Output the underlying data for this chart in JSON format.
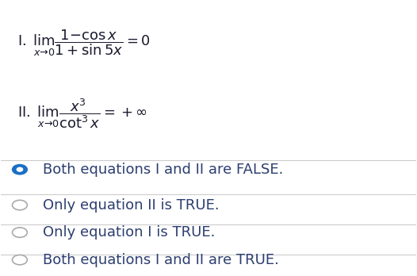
{
  "background_color": "#ffffff",
  "fig_width": 5.26,
  "fig_height": 3.48,
  "dpi": 100,
  "math_line1": "\\mathrm{I.}\\;\\lim_{x\\to 0}\\dfrac{1-\\cos x}{1+\\sin 5x} = 0",
  "math_line2": "\\mathrm{II.}\\;\\lim_{x\\to 0}\\dfrac{x^3}{\\cot^3 x} = +\\infty",
  "options": [
    "Both equations I and II are FALSE.",
    "Only equation II is TRUE.",
    "Only equation I is TRUE.",
    "Both equations I and II are TRUE."
  ],
  "selected_index": 0,
  "radio_selected_color": "#1a6fc4",
  "radio_unselected_color": "#aaaaaa",
  "text_color": "#1a1a2e",
  "option_text_color": "#2c3e70",
  "separator_color": "#cccccc",
  "label_color": "#d4841a",
  "math_fontsize": 13,
  "option_fontsize": 13
}
